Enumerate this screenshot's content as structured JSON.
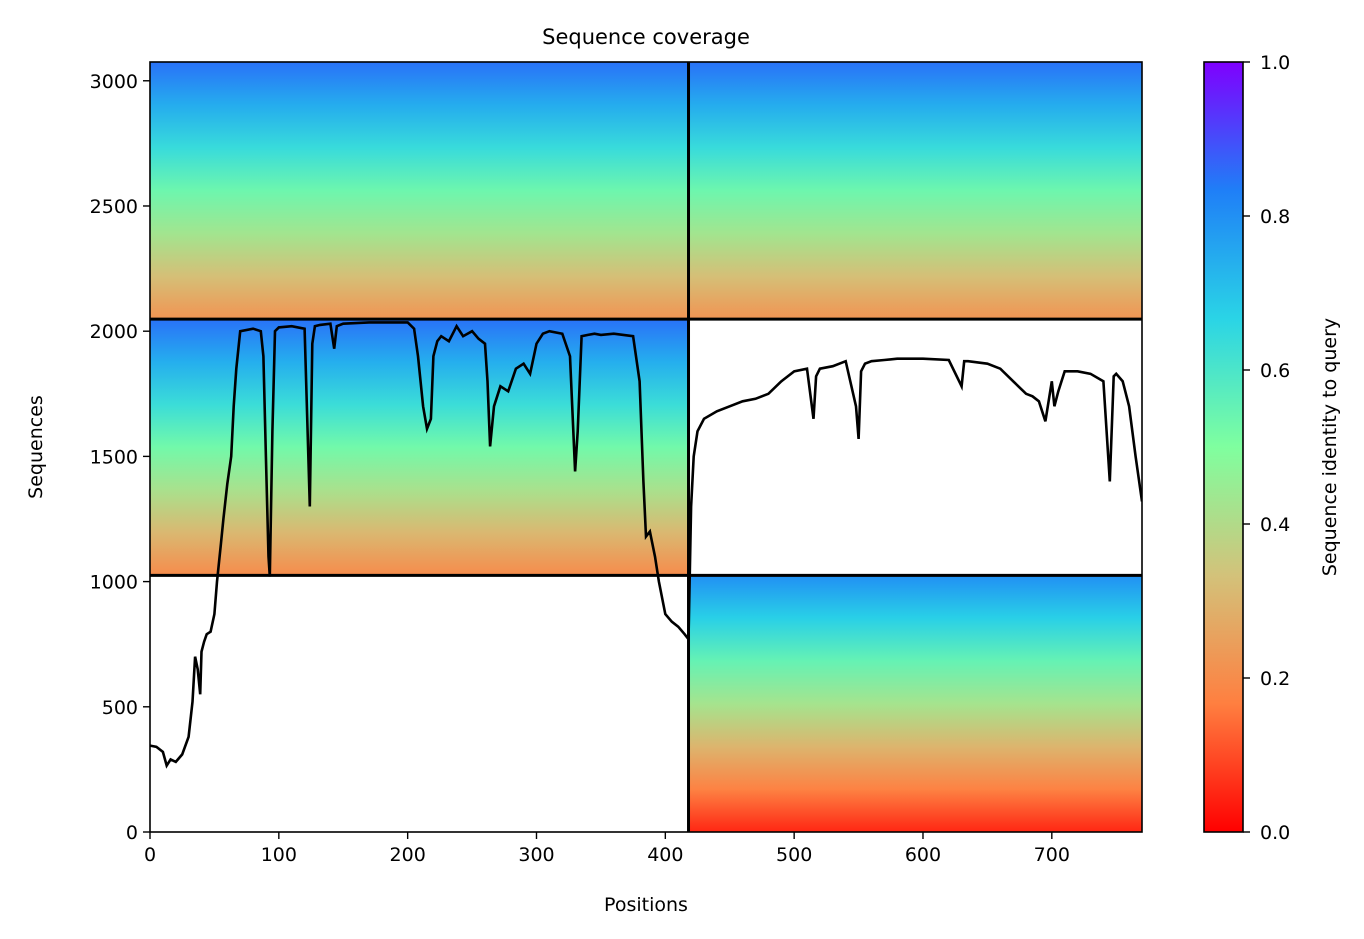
{
  "chart_data": {
    "type": "heatmap",
    "title": "Sequence coverage",
    "xlabel": "Positions",
    "ylabel": "Sequences",
    "xlim": [
      0,
      770
    ],
    "ylim": [
      0,
      3075
    ],
    "xticks": [
      0,
      100,
      200,
      300,
      400,
      500,
      600,
      700
    ],
    "yticks": [
      0,
      500,
      1000,
      1500,
      2000,
      2500,
      3000
    ],
    "grid": false,
    "colorbar": {
      "label": "Sequence identity to query",
      "range": [
        0,
        1
      ],
      "ticks": [
        "0.0",
        "0.2",
        "0.4",
        "0.6",
        "0.8",
        "1.0"
      ],
      "colormap": "rainbow",
      "stops": [
        "#ff0000",
        "#ff7f40",
        "#d3c27a",
        "#7fff9f",
        "#2ad4e6",
        "#1f7ff7",
        "#7f00ff"
      ]
    },
    "separators": {
      "vertical_x": 418,
      "horizontal_y": [
        1025,
        2048
      ]
    },
    "blocks": [
      {
        "x_range": [
          0,
          418
        ],
        "y_range": [
          2048,
          3075
        ],
        "identity_bottom": 0.22,
        "identity_top": 0.85
      },
      {
        "x_range": [
          0,
          418
        ],
        "y_range": [
          1025,
          2048
        ],
        "identity_bottom": 0.2,
        "identity_top": 0.85
      },
      {
        "x_range": [
          418,
          770
        ],
        "y_range": [
          2048,
          3075
        ],
        "identity_bottom": 0.22,
        "identity_top": 0.85
      },
      {
        "x_range": [
          418,
          770
        ],
        "y_range": [
          0,
          1025
        ],
        "identity_bottom": 0.05,
        "identity_top": 0.8
      }
    ],
    "coverage_line": {
      "x": [
        0,
        5,
        10,
        13,
        16,
        20,
        25,
        30,
        33,
        35,
        37,
        39,
        40,
        42,
        44,
        47,
        50,
        52,
        55,
        57,
        60,
        63,
        65,
        67,
        70,
        80,
        86,
        88,
        90,
        92,
        93,
        95,
        97,
        100,
        110,
        120,
        124,
        126,
        128,
        132,
        140,
        143,
        145,
        150,
        170,
        200,
        205,
        208,
        212,
        215,
        218,
        220,
        223,
        226,
        232,
        238,
        243,
        250,
        255,
        260,
        262,
        264,
        267,
        272,
        278,
        284,
        290,
        295,
        300,
        305,
        310,
        320,
        326,
        330,
        332,
        335,
        340,
        345,
        350,
        360,
        375,
        380,
        383,
        385,
        388,
        392,
        395,
        400,
        405,
        410,
        415,
        418,
        420,
        422,
        425,
        430,
        440,
        450,
        460,
        470,
        480,
        490,
        500,
        510,
        515,
        517,
        520,
        530,
        540,
        548,
        550,
        552,
        555,
        560,
        570,
        580,
        600,
        620,
        630,
        632,
        635,
        650,
        660,
        670,
        680,
        685,
        690,
        695,
        700,
        702,
        705,
        710,
        720,
        730,
        740,
        745,
        748,
        750,
        755,
        760,
        765,
        770
      ],
      "y": [
        345,
        340,
        320,
        265,
        290,
        280,
        310,
        380,
        520,
        700,
        650,
        550,
        720,
        760,
        790,
        800,
        870,
        1000,
        1150,
        1250,
        1390,
        1500,
        1700,
        1850,
        2000,
        2010,
        2000,
        1900,
        1500,
        1100,
        1020,
        1600,
        2000,
        2015,
        2020,
        2010,
        1300,
        1950,
        2020,
        2025,
        2030,
        1930,
        2020,
        2030,
        2035,
        2035,
        2010,
        1900,
        1700,
        1610,
        1650,
        1900,
        1960,
        1980,
        1960,
        2020,
        1980,
        2000,
        1970,
        1950,
        1800,
        1540,
        1700,
        1780,
        1760,
        1850,
        1870,
        1830,
        1950,
        1990,
        2000,
        1990,
        1900,
        1440,
        1600,
        1980,
        1985,
        1990,
        1985,
        1990,
        1980,
        1800,
        1400,
        1180,
        1200,
        1100,
        1000,
        870,
        840,
        820,
        790,
        770,
        1300,
        1500,
        1600,
        1650,
        1680,
        1700,
        1720,
        1730,
        1750,
        1800,
        1840,
        1850,
        1650,
        1820,
        1850,
        1860,
        1880,
        1700,
        1570,
        1840,
        1870,
        1880,
        1885,
        1890,
        1890,
        1885,
        1780,
        1880,
        1880,
        1870,
        1850,
        1800,
        1750,
        1740,
        1720,
        1640,
        1800,
        1700,
        1760,
        1840,
        1840,
        1830,
        1800,
        1400,
        1820,
        1830,
        1800,
        1700,
        1500,
        1320
      ]
    }
  }
}
